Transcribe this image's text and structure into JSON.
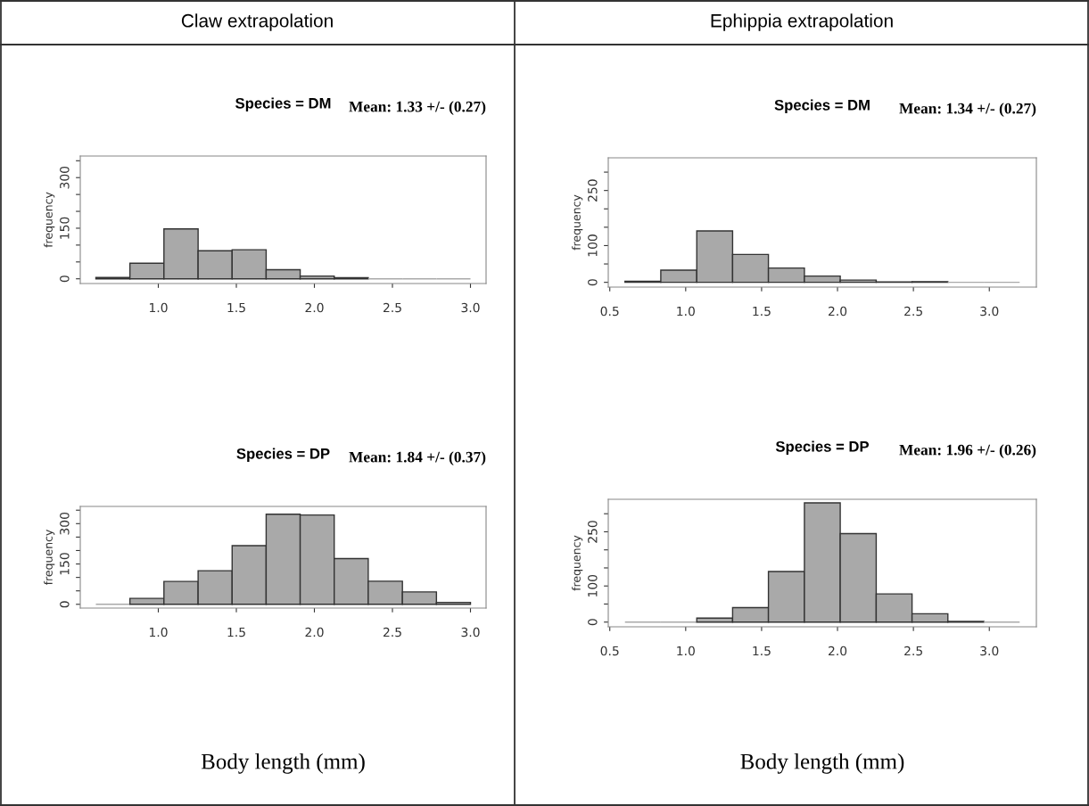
{
  "chart_data": [
    {
      "type": "histogram",
      "title": "Species = DM",
      "ylabel": "frequency",
      "annotations": [
        "Claw extrapolation",
        "Mean: 1.33 +/- (0.27)"
      ],
      "color": "#a9a9a9",
      "bins": [
        0.6,
        0.818,
        1.036,
        1.255,
        1.473,
        1.691,
        1.909,
        2.127,
        2.345,
        2.564,
        2.782,
        3.0
      ],
      "values": [
        4,
        46,
        148,
        83,
        86,
        27,
        8,
        3,
        0,
        0,
        0
      ],
      "xlim": [
        0.5,
        3.1
      ],
      "xticks": [
        {
          "value": 1,
          "label": "1.0"
        },
        {
          "value": 1.5,
          "label": "1.5"
        },
        {
          "value": 2,
          "label": "2.0"
        },
        {
          "value": 2.5,
          "label": "2.5"
        },
        {
          "value": 3,
          "label": "3.0"
        }
      ],
      "ylim": [
        -14,
        364
      ],
      "yticks": [
        0,
        {
          "value": 50,
          "label": null
        },
        {
          "value": 100,
          "label": null
        },
        150,
        {
          "value": 200,
          "label": null
        },
        {
          "value": 250,
          "label": null
        },
        300,
        {
          "value": 350,
          "label": null
        }
      ],
      "grid": false
    },
    {
      "type": "histogram",
      "title": "Species = DM",
      "ylabel": "frequency",
      "annotations": [
        "Ephippia extrapolation",
        "Mean: 1.34 +/- (0.27)"
      ],
      "color": "#a9a9a9",
      "bins": [
        0.6,
        0.836,
        1.073,
        1.309,
        1.545,
        1.782,
        2.018,
        2.255,
        2.491,
        2.727,
        2.964,
        3.2
      ],
      "values": [
        3,
        33,
        140,
        76,
        39,
        17,
        6,
        1,
        2,
        0,
        0
      ],
      "xlim": [
        0.49,
        3.31
      ],
      "xticks": [
        0.5,
        {
          "value": 1,
          "label": "1.0"
        },
        1.5,
        {
          "value": 2,
          "label": "2.0"
        },
        2.5,
        {
          "value": 3,
          "label": "3.0"
        }
      ],
      "ylim": [
        -13,
        339
      ],
      "yticks": [
        0,
        {
          "value": 50,
          "label": null
        },
        100,
        {
          "value": 150,
          "label": null
        },
        {
          "value": 200,
          "label": null
        },
        250,
        {
          "value": 300,
          "label": null
        }
      ],
      "grid": false
    },
    {
      "type": "histogram",
      "title": "Species = DP",
      "ylabel": "frequency",
      "xlabel": "Body length (mm)",
      "annotations": [
        "Mean: 1.84 +/- (0.37)"
      ],
      "color": "#a9a9a9",
      "bins": [
        0.6,
        0.818,
        1.036,
        1.255,
        1.473,
        1.691,
        1.909,
        2.127,
        2.345,
        2.564,
        2.782,
        3.0
      ],
      "values": [
        0,
        22,
        85,
        125,
        218,
        335,
        332,
        170,
        86,
        46,
        7
      ],
      "xlim": [
        0.5,
        3.1
      ],
      "xticks": [
        {
          "value": 1,
          "label": "1.0"
        },
        1.5,
        {
          "value": 2,
          "label": "2.0"
        },
        2.5,
        {
          "value": 3,
          "label": "3.0"
        }
      ],
      "ylim": [
        -14,
        364
      ],
      "yticks": [
        0,
        {
          "value": 50,
          "label": null
        },
        {
          "value": 100,
          "label": null
        },
        150,
        {
          "value": 200,
          "label": null
        },
        {
          "value": 250,
          "label": null
        },
        300,
        {
          "value": 350,
          "label": null
        }
      ],
      "grid": false
    },
    {
      "type": "histogram",
      "title": "Species = DP",
      "ylabel": "frequency",
      "xlabel": "Body length (mm)",
      "annotations": [
        "Mean: 1.96 +/- (0.26)"
      ],
      "color": "#a9a9a9",
      "bins": [
        0.6,
        0.836,
        1.073,
        1.309,
        1.545,
        1.782,
        2.018,
        2.255,
        2.491,
        2.727,
        2.964,
        3.2
      ],
      "values": [
        0,
        0,
        11,
        40,
        140,
        330,
        245,
        78,
        23,
        2,
        0
      ],
      "xlim": [
        0.49,
        3.31
      ],
      "xticks": [
        0.5,
        {
          "value": 1,
          "label": "1.0"
        },
        1.5,
        {
          "value": 2,
          "label": "2.0"
        },
        2.5,
        {
          "value": 3,
          "label": "3.0"
        }
      ],
      "ylim": [
        -13,
        340
      ],
      "yticks": [
        0,
        {
          "value": 50,
          "label": null
        },
        100,
        {
          "value": 150,
          "label": null
        },
        {
          "value": 200,
          "label": null
        },
        250,
        {
          "value": 300,
          "label": null
        }
      ],
      "grid": false
    }
  ]
}
